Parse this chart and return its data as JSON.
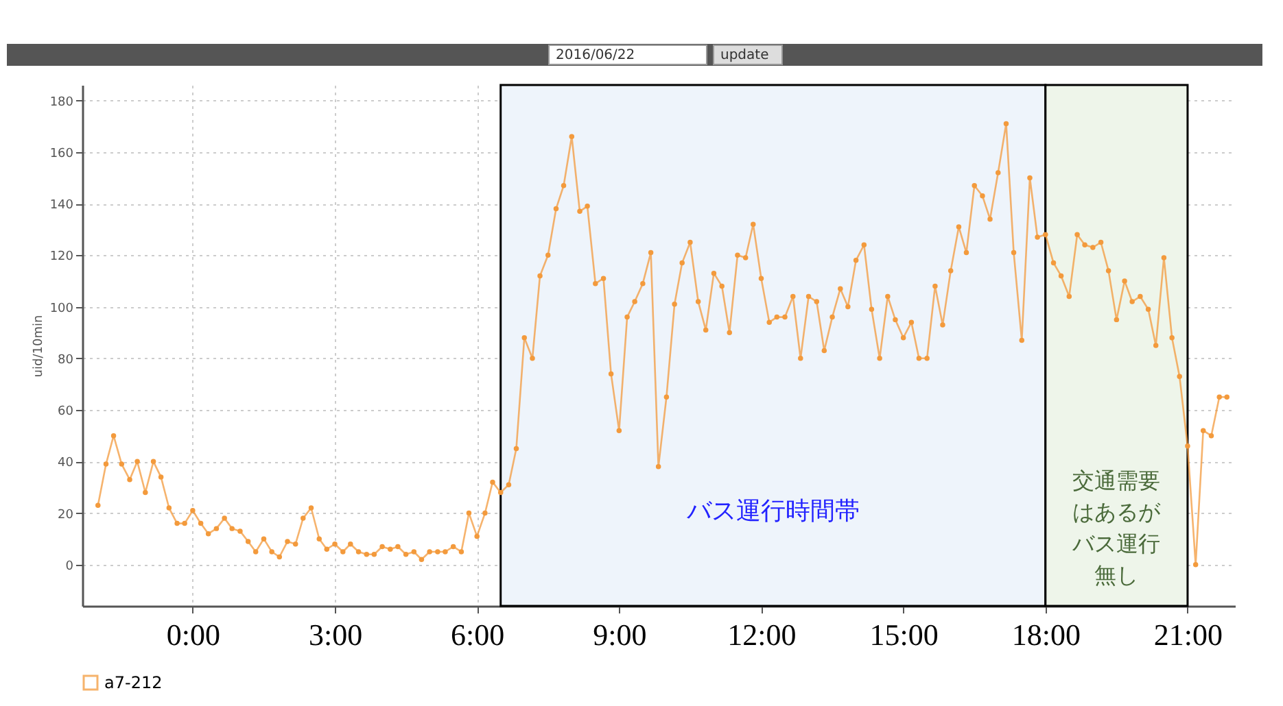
{
  "chart_data": {
    "type": "line",
    "ylabel": "uid/10min",
    "legend": "bottom",
    "grid": true,
    "marker": "circle",
    "line_style": "solid",
    "annotations": [
      "2016/06/22",
      "update"
    ],
    "xlim": [
      -2.33,
      22
    ],
    "ylim": [
      -16,
      186
    ],
    "xticks": [
      {
        "value": 0,
        "label": "0:00"
      },
      {
        "value": 3,
        "label": "3:00"
      },
      {
        "value": 6,
        "label": "6:00"
      },
      {
        "value": 9,
        "label": "9:00"
      },
      {
        "value": 12,
        "label": "12:00"
      },
      {
        "value": 15,
        "label": "15:00"
      },
      {
        "value": 18,
        "label": "18:00"
      },
      {
        "value": 21,
        "label": "21:00"
      }
    ],
    "yticks": [
      0,
      20,
      40,
      60,
      80,
      100,
      120,
      140,
      160,
      180
    ],
    "bands": [
      {
        "axis": "x",
        "from": 6.5,
        "to": 18,
        "label": "バス運行時間帯",
        "color": "#eef4fb"
      },
      {
        "axis": "x",
        "from": 18,
        "to": 21,
        "label": "交通需要はあるがバス運行無し",
        "color": "#eef5ea"
      }
    ],
    "x": [
      -2,
      -1.83,
      -1.67,
      -1.5,
      -1.33,
      -1.17,
      -1,
      -0.83,
      -0.67,
      -0.5,
      -0.33,
      -0.17,
      0,
      0.17,
      0.33,
      0.5,
      0.67,
      0.83,
      1,
      1.17,
      1.33,
      1.5,
      1.67,
      1.83,
      2,
      2.17,
      2.33,
      2.5,
      2.67,
      2.83,
      3,
      3.17,
      3.33,
      3.5,
      3.67,
      3.83,
      4,
      4.17,
      4.33,
      4.5,
      4.67,
      4.83,
      5,
      5.17,
      5.33,
      5.5,
      5.67,
      5.83,
      6,
      6.17,
      6.33,
      6.5,
      6.67,
      6.83,
      7,
      7.17,
      7.33,
      7.5,
      7.67,
      7.83,
      8,
      8.17,
      8.33,
      8.5,
      8.67,
      8.83,
      9,
      9.17,
      9.33,
      9.5,
      9.67,
      9.83,
      10,
      10.17,
      10.33,
      10.5,
      10.67,
      10.83,
      11,
      11.17,
      11.33,
      11.5,
      11.67,
      11.83,
      12,
      12.17,
      12.33,
      12.5,
      12.67,
      12.83,
      13,
      13.17,
      13.33,
      13.5,
      13.67,
      13.83,
      14,
      14.17,
      14.33,
      14.5,
      14.67,
      14.83,
      15,
      15.17,
      15.33,
      15.5,
      15.67,
      15.83,
      16,
      16.17,
      16.33,
      16.5,
      16.67,
      16.83,
      17,
      17.17,
      17.33,
      17.5,
      17.67,
      17.83,
      18,
      18.17,
      18.33,
      18.5,
      18.67,
      18.83,
      19,
      19.17,
      19.33,
      19.5,
      19.67,
      19.83,
      20,
      20.17,
      20.33,
      20.5,
      20.67,
      20.83,
      21,
      21.17,
      21.33,
      21.5,
      21.67,
      21.83
    ],
    "series": [
      {
        "name": "a7-212",
        "color": "#f39a3c",
        "values": [
          23,
          39,
          50,
          39,
          33,
          40,
          28,
          40,
          34,
          22,
          16,
          16,
          21,
          16,
          12,
          14,
          18,
          14,
          13,
          9,
          5,
          10,
          5,
          3,
          9,
          8,
          18,
          22,
          10,
          6,
          8,
          5,
          8,
          5,
          4,
          4,
          7,
          6,
          7,
          4,
          5,
          2,
          5,
          5,
          5,
          7,
          5,
          20,
          11,
          20,
          32,
          28,
          31,
          45,
          88,
          80,
          112,
          120,
          138,
          147,
          166,
          137,
          139,
          109,
          111,
          74,
          52,
          96,
          102,
          109,
          121,
          38,
          65,
          101,
          117,
          125,
          102,
          91,
          113,
          108,
          90,
          120,
          119,
          132,
          111,
          94,
          96,
          96,
          104,
          80,
          104,
          102,
          83,
          96,
          107,
          100,
          118,
          124,
          99,
          80,
          104,
          95,
          88,
          94,
          80,
          80,
          108,
          93,
          114,
          131,
          121,
          147,
          143,
          134,
          152,
          171,
          121,
          87,
          150,
          127,
          128,
          117,
          112,
          104,
          128,
          124,
          123,
          125,
          114,
          95,
          110,
          102,
          104,
          99,
          85,
          119,
          88,
          73,
          46,
          0,
          52,
          50,
          65,
          65
        ]
      }
    ]
  }
}
